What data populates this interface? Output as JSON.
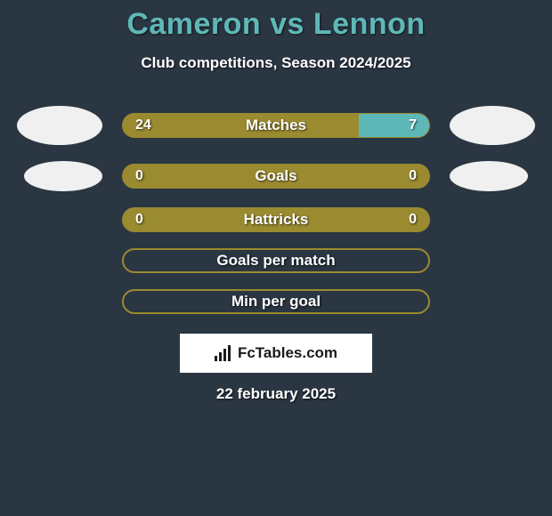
{
  "title": "Cameron vs Lennon",
  "subtitle": "Club competitions, Season 2024/2025",
  "colors": {
    "background": "#2a3642",
    "accent_teal": "#5fb8b8",
    "accent_olive": "#9a8a30",
    "text": "#ffffff"
  },
  "rows": [
    {
      "label": "Matches",
      "left_value": "24",
      "right_value": "7",
      "left_pct": 77,
      "right_pct": 23,
      "has_values": true,
      "show_avatars": true,
      "avatar_small": false,
      "filled": true
    },
    {
      "label": "Goals",
      "left_value": "0",
      "right_value": "0",
      "left_pct": 100,
      "right_pct": 0,
      "has_values": true,
      "show_avatars": true,
      "avatar_small": true,
      "filled": true
    },
    {
      "label": "Hattricks",
      "left_value": "0",
      "right_value": "0",
      "left_pct": 100,
      "right_pct": 0,
      "has_values": true,
      "show_avatars": false,
      "filled": true
    },
    {
      "label": "Goals per match",
      "has_values": false,
      "show_avatars": false,
      "filled": false
    },
    {
      "label": "Min per goal",
      "has_values": false,
      "show_avatars": false,
      "filled": false
    }
  ],
  "logo_text": "FcTables.com",
  "date": "22 february 2025"
}
